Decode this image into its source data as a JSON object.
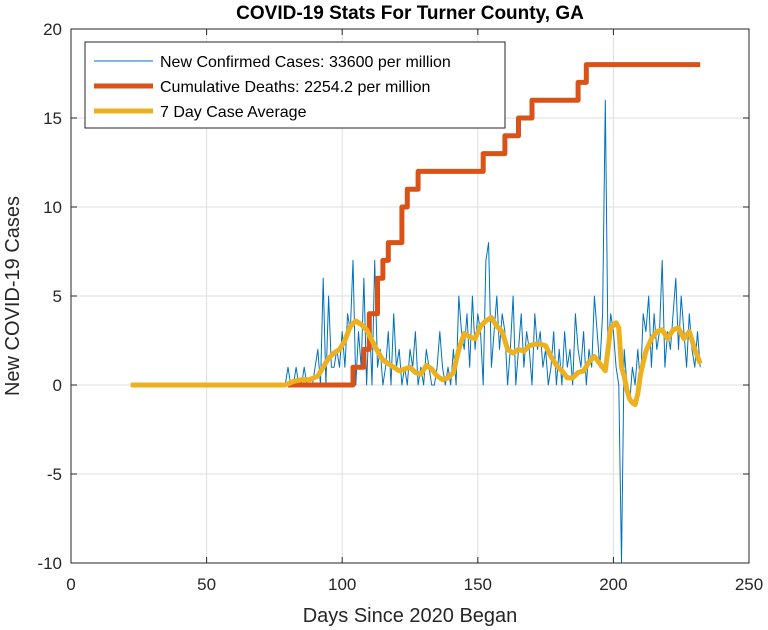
{
  "chart_data": {
    "type": "line",
    "title": "COVID-19 Stats For Turner County, GA",
    "xlabel": "Days Since 2020 Began",
    "ylabel": "New COVID-19 Cases",
    "xlim": [
      0,
      250
    ],
    "ylim": [
      -10,
      20
    ],
    "xticks": [
      0,
      50,
      100,
      150,
      200,
      250
    ],
    "yticks": [
      -10,
      -5,
      0,
      5,
      10,
      15,
      20
    ],
    "grid": true,
    "legend_position": "top-left",
    "series": [
      {
        "name": "New Confirmed Cases: 33600 per million",
        "color": "#0072BD",
        "x": [
          22,
          79,
          80,
          81,
          82,
          83,
          84,
          85,
          86,
          87,
          88,
          89,
          90,
          91,
          92,
          93,
          94,
          95,
          96,
          97,
          98,
          99,
          100,
          101,
          102,
          103,
          104,
          105,
          106,
          107,
          108,
          109,
          110,
          111,
          112,
          113,
          114,
          115,
          116,
          117,
          118,
          119,
          120,
          121,
          122,
          123,
          124,
          125,
          126,
          127,
          128,
          129,
          130,
          131,
          132,
          133,
          134,
          135,
          136,
          137,
          138,
          139,
          140,
          141,
          142,
          143,
          144,
          145,
          146,
          147,
          148,
          149,
          150,
          151,
          152,
          153,
          154,
          155,
          156,
          157,
          158,
          159,
          160,
          161,
          162,
          163,
          164,
          165,
          166,
          167,
          168,
          169,
          170,
          171,
          172,
          173,
          174,
          175,
          176,
          177,
          178,
          179,
          180,
          181,
          182,
          183,
          184,
          185,
          186,
          187,
          188,
          189,
          190,
          191,
          192,
          193,
          194,
          195,
          196,
          197,
          198,
          199,
          200,
          201,
          202,
          203,
          204,
          205,
          206,
          207,
          208,
          209,
          210,
          211,
          212,
          213,
          214,
          215,
          216,
          217,
          218,
          219,
          220,
          221,
          222,
          223,
          224,
          225,
          226,
          227,
          228,
          229,
          230,
          231,
          232
        ],
        "y": [
          0,
          0,
          1,
          0,
          0,
          1,
          0,
          0,
          1,
          0,
          0,
          0,
          1,
          2,
          0,
          6,
          0,
          5,
          1,
          1,
          2,
          1,
          3,
          1,
          4,
          3,
          7,
          0,
          3,
          1,
          6,
          0,
          4,
          0,
          7,
          1,
          2,
          0,
          1,
          3,
          0,
          4,
          1,
          2,
          0,
          1,
          0,
          2,
          1,
          3,
          0,
          1,
          0,
          2,
          1,
          0,
          0,
          1,
          3,
          1,
          0,
          1,
          0,
          2,
          0,
          5,
          3,
          2,
          4,
          1,
          5,
          2,
          4,
          3,
          0,
          7,
          8,
          1,
          3,
          5,
          2,
          4,
          3,
          0,
          2,
          5,
          0,
          2,
          4,
          1,
          3,
          2,
          0,
          4,
          2,
          3,
          1,
          2,
          0,
          1,
          3,
          0,
          2,
          0,
          3,
          1,
          2,
          0,
          4,
          2,
          1,
          3,
          0,
          2,
          1,
          5,
          3,
          1,
          4,
          16,
          2,
          4,
          3,
          1,
          0,
          -10,
          2,
          0,
          -1,
          1,
          0,
          2,
          0,
          4,
          3,
          5,
          1,
          4,
          2,
          3,
          7,
          1,
          3,
          2,
          4,
          6,
          2,
          5,
          3,
          1,
          4,
          2,
          1,
          3,
          1
        ]
      },
      {
        "name": "Cumulative Deaths: 2254.2 per million",
        "color": "#D95319",
        "x": [
          80,
          104,
          104,
          108,
          108,
          110,
          110,
          113,
          113,
          115,
          115,
          117,
          117,
          122,
          122,
          124,
          124,
          128,
          128,
          152,
          152,
          160,
          160,
          165,
          165,
          170,
          170,
          187,
          187,
          190,
          190,
          232
        ],
        "y": [
          0,
          0,
          1,
          1,
          2,
          2,
          4,
          4,
          6,
          6,
          7,
          7,
          8,
          8,
          10,
          10,
          11,
          11,
          12,
          12,
          13,
          13,
          14,
          14,
          15,
          15,
          16,
          16,
          17,
          17,
          18,
          18
        ]
      },
      {
        "name": "7 Day Case Average",
        "color": "#EDB120",
        "x": [
          22,
          79,
          82,
          85,
          88,
          91,
          93,
          95,
          97,
          99,
          101,
          103,
          105,
          107,
          109,
          111,
          113,
          115,
          117,
          119,
          121,
          123,
          125,
          127,
          129,
          131,
          133,
          135,
          137,
          139,
          141,
          143,
          145,
          147,
          149,
          151,
          153,
          155,
          157,
          159,
          161,
          163,
          165,
          167,
          169,
          171,
          173,
          175,
          177,
          179,
          181,
          183,
          185,
          187,
          189,
          191,
          193,
          195,
          197,
          199,
          201,
          202,
          203,
          204,
          205,
          206,
          207,
          208,
          209,
          210,
          212,
          214,
          216,
          218,
          220,
          222,
          224,
          226,
          228,
          230,
          232
        ],
        "y": [
          0,
          0,
          0.2,
          0.3,
          0.3,
          0.5,
          1.0,
          1.5,
          1.8,
          2.0,
          2.5,
          3.3,
          3.6,
          3.4,
          3.1,
          2.5,
          1.9,
          1.4,
          1.2,
          1.0,
          0.8,
          0.9,
          1.0,
          0.7,
          0.6,
          1.1,
          0.9,
          0.5,
          0.3,
          0.4,
          0.7,
          2.0,
          2.9,
          2.7,
          2.6,
          3.3,
          3.6,
          3.8,
          3.3,
          3.0,
          2.0,
          1.8,
          2.0,
          1.9,
          2.2,
          2.3,
          2.3,
          2.2,
          1.6,
          1.1,
          0.8,
          0.4,
          0.4,
          0.7,
          0.8,
          1.3,
          1.6,
          1.2,
          0.8,
          3.2,
          3.5,
          3.2,
          1.0,
          0.5,
          -0.3,
          -0.8,
          -1.0,
          -1.1,
          -0.5,
          0.6,
          1.9,
          2.6,
          3.0,
          3.1,
          2.6,
          3.1,
          3.2,
          2.6,
          3.0,
          2.0,
          1.2
        ]
      }
    ]
  }
}
